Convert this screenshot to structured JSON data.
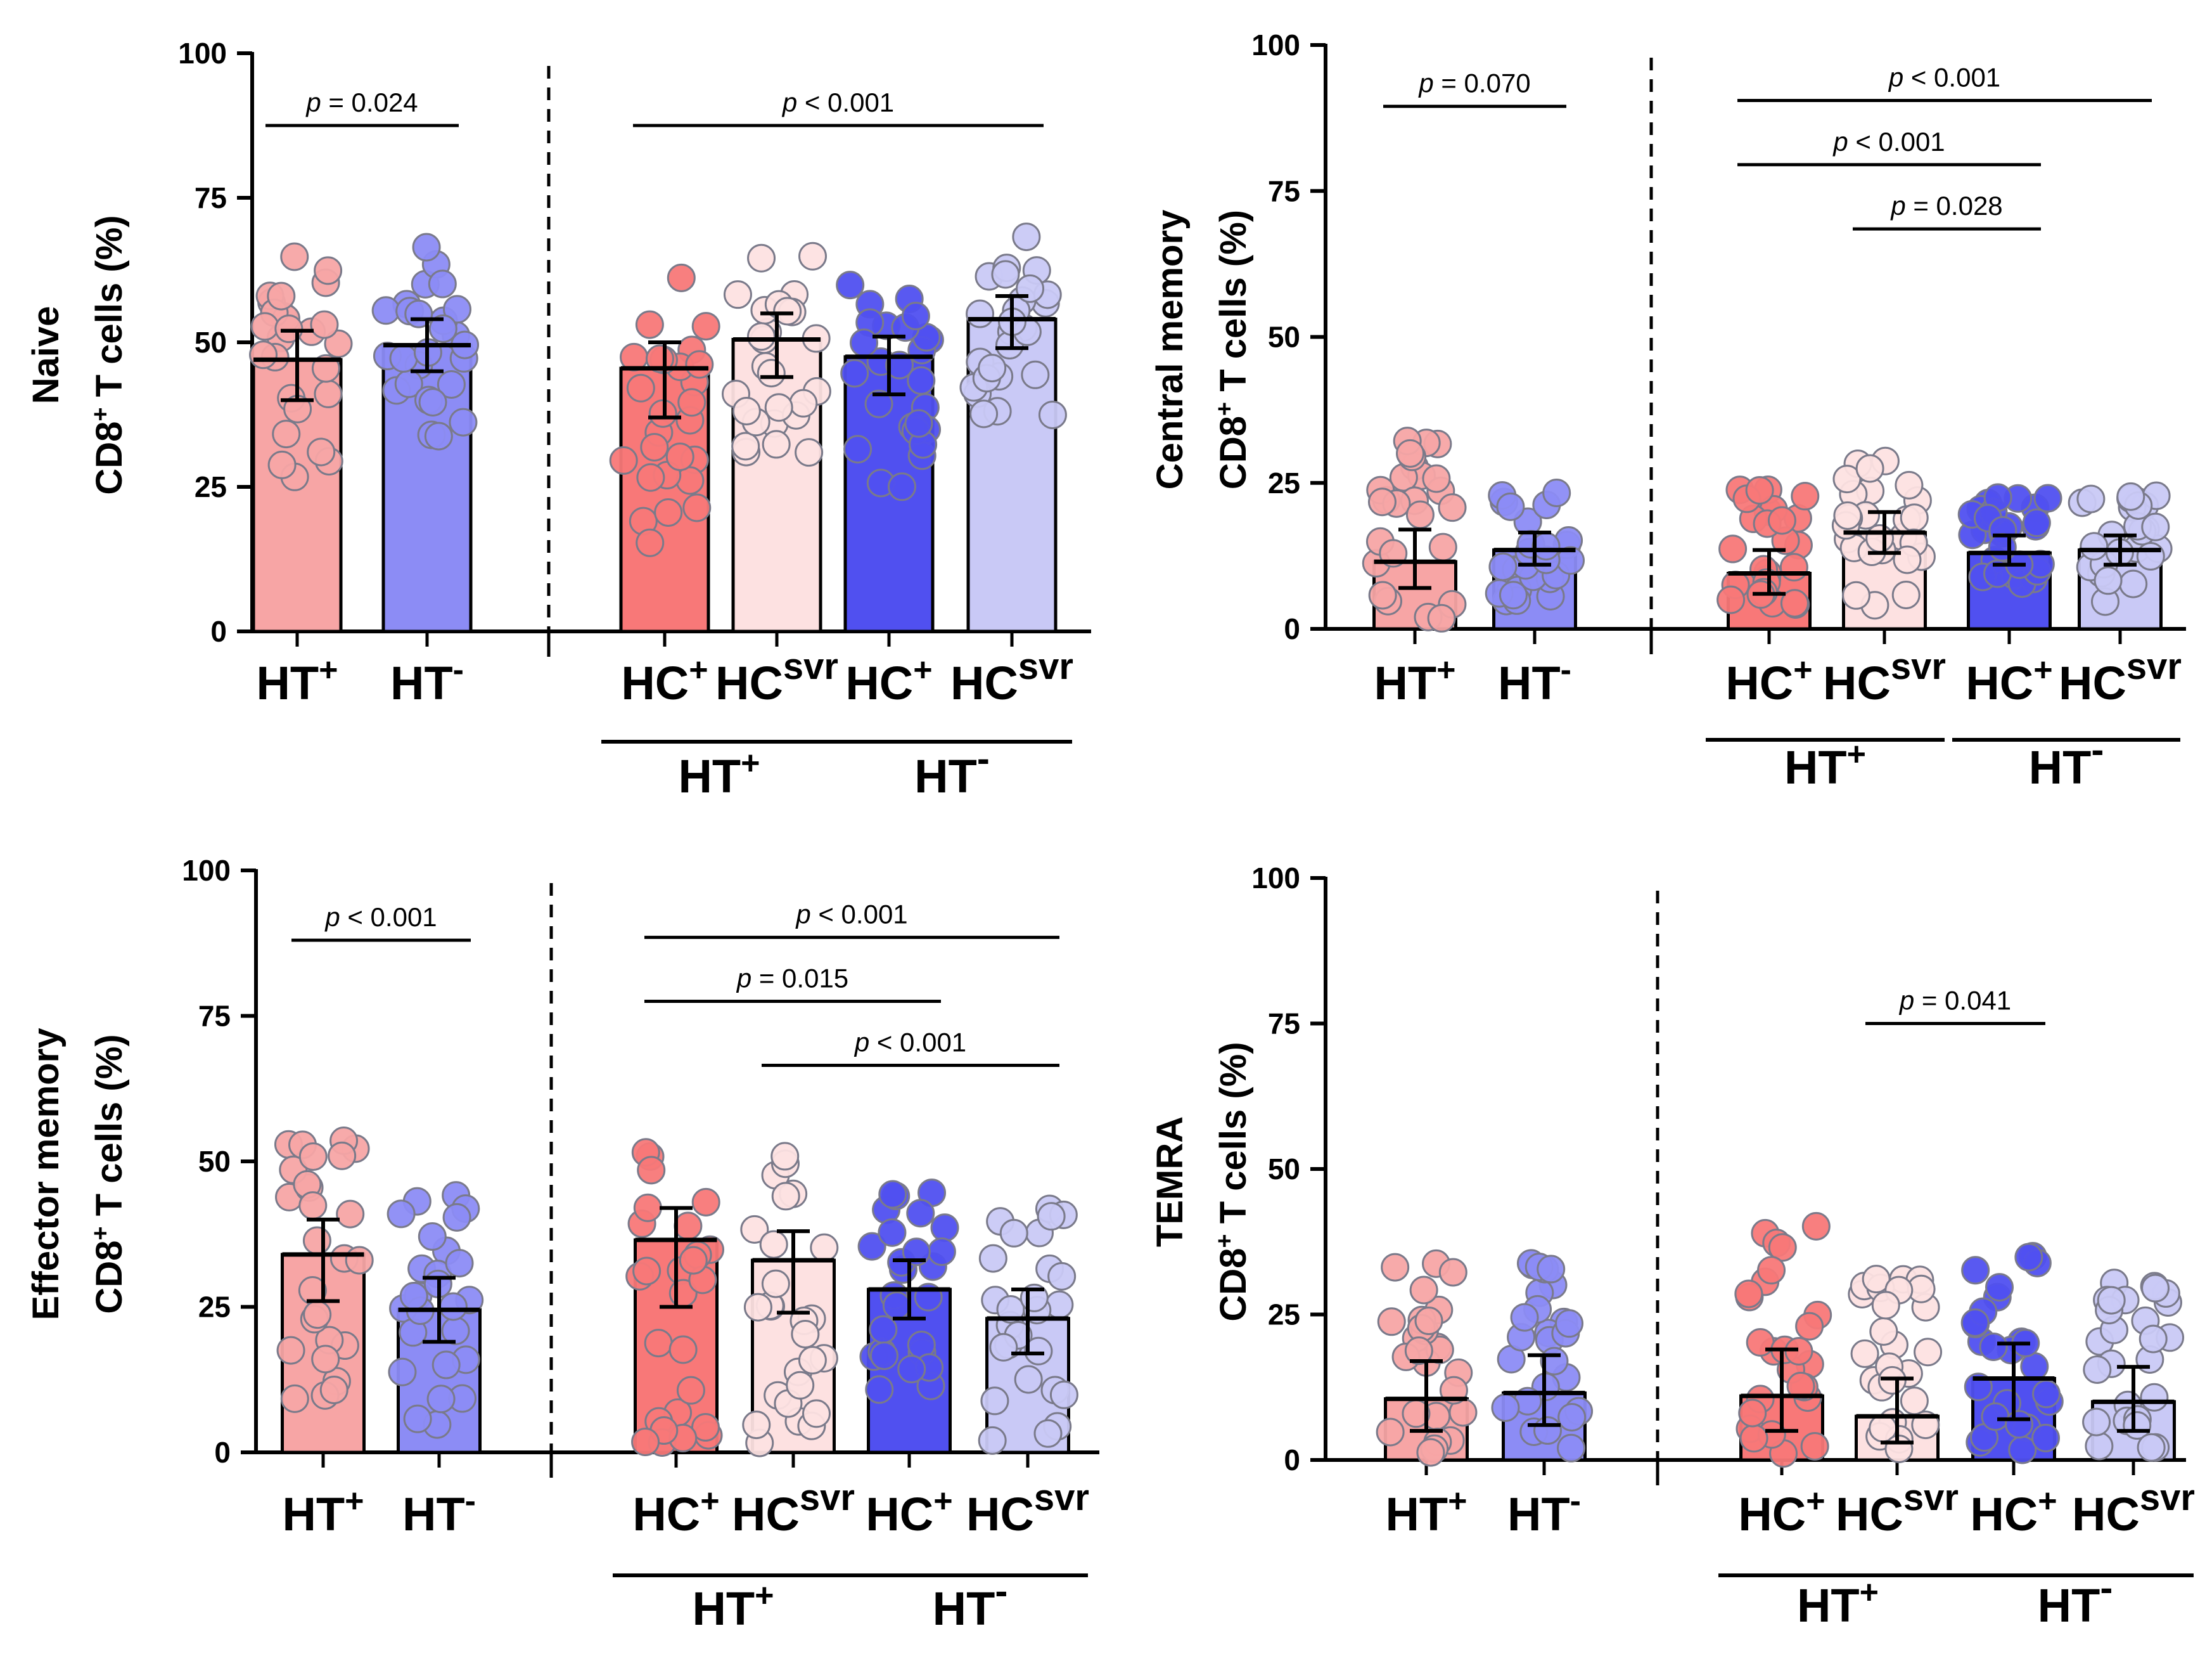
{
  "labels": {
    "ht_pos": "HT",
    "ht_neg": "HT",
    "hc_pos": "HC",
    "hc_svr": "HC",
    "plus": "+",
    "minus": "-",
    "svr": "svr",
    "p_letter": "p"
  },
  "colors": {
    "ht_pos": "#f7a5a5",
    "ht_neg": "#8c8cf5",
    "hc_pos_htpos": "#f87878",
    "hc_svr_htpos": "#fde1e1",
    "hc_pos_htneg": "#5050f0",
    "hc_svr_htneg": "#c9c9f6"
  },
  "chart_data": [
    {
      "type": "bar",
      "title_line1": "Naive",
      "ylabel_prefix": "CD8",
      "ylabel_suffix": " T cells (%)",
      "ylim": [
        0,
        100
      ],
      "yticks": [
        "0",
        "25",
        "50",
        "75",
        "100"
      ],
      "series": [
        {
          "name": "HT+",
          "value": 47,
          "error": [
            40,
            52
          ]
        },
        {
          "name": "HT-",
          "value": 49.5,
          "error": [
            45,
            54
          ]
        },
        {
          "name": "HC+ (HT+)",
          "value": 45.5,
          "error": [
            37,
            50
          ]
        },
        {
          "name": "HCsvr (HT+)",
          "value": 50.5,
          "error": [
            44,
            55
          ]
        },
        {
          "name": "HC+ (HT-)",
          "value": 47.5,
          "error": [
            41,
            51
          ]
        },
        {
          "name": "HCsvr (HT-)",
          "value": 54,
          "error": [
            49,
            58
          ]
        }
      ],
      "annotations": [
        {
          "text": " = 0.024",
          "from": "HT+",
          "to": "HT-",
          "y": 87.5
        },
        {
          "text": " < 0.001",
          "from": "HC+ (HT+)",
          "to": "HCsvr (HT-)",
          "y": 87.5
        }
      ]
    },
    {
      "type": "bar",
      "title_line1": "Central memory",
      "ylabel_prefix": "CD8",
      "ylabel_suffix": " T cells (%)",
      "ylim": [
        0,
        100
      ],
      "yticks": [
        "0",
        "25",
        "50",
        "75",
        "100"
      ],
      "series": [
        {
          "name": "HT+",
          "value": 11.5,
          "error": [
            7,
            17
          ]
        },
        {
          "name": "HT-",
          "value": 13.5,
          "error": [
            11,
            16.5
          ]
        },
        {
          "name": "HC+ (HT+)",
          "value": 9.5,
          "error": [
            6,
            13.5
          ]
        },
        {
          "name": "HCsvr (HT+)",
          "value": 16.5,
          "error": [
            13,
            20
          ]
        },
        {
          "name": "HC+ (HT-)",
          "value": 13,
          "error": [
            11,
            16
          ]
        },
        {
          "name": "HCsvr (HT-)",
          "value": 13.5,
          "error": [
            11,
            16
          ]
        }
      ],
      "annotations": [
        {
          "text": " = 0.070",
          "from": "HT+",
          "to": "HT-",
          "y": 89.5
        },
        {
          "text": " < 0.001",
          "from": "HC+ (HT+)",
          "to": "HCsvr (HT-)",
          "y": 90.5
        },
        {
          "text": " < 0.001",
          "from": "HC+ (HT+)",
          "to": "HC+ (HT-)",
          "y": 79.5
        },
        {
          "text": " = 0.028",
          "from": "HCsvr (HT+)",
          "to": "HC+ (HT-)",
          "y": 68.5
        }
      ]
    },
    {
      "type": "bar",
      "title_line1": "Effector memory",
      "ylabel_prefix": "CD8",
      "ylabel_suffix": " T cells (%)",
      "ylim": [
        0,
        100
      ],
      "yticks": [
        "0",
        "25",
        "50",
        "75",
        "100"
      ],
      "series": [
        {
          "name": "HT+",
          "value": 34,
          "error": [
            26,
            40
          ]
        },
        {
          "name": "HT-",
          "value": 24.5,
          "error": [
            19,
            30
          ]
        },
        {
          "name": "HC+ (HT+)",
          "value": 36.5,
          "error": [
            25,
            42
          ]
        },
        {
          "name": "HCsvr (HT+)",
          "value": 33,
          "error": [
            24,
            38
          ]
        },
        {
          "name": "HC+ (HT-)",
          "value": 28,
          "error": [
            23,
            33
          ]
        },
        {
          "name": "HCsvr (HT-)",
          "value": 23,
          "error": [
            17,
            28
          ]
        }
      ],
      "annotations": [
        {
          "text": " < 0.001",
          "from": "HT+",
          "to": "HT-",
          "y": 88
        },
        {
          "text": " < 0.001",
          "from": "HC+ (HT+)",
          "to": "HCsvr (HT-)",
          "y": 88.5
        },
        {
          "text": " = 0.015",
          "from": "HC+ (HT+)",
          "to": "HC+ (HT-)",
          "y": 77.5
        },
        {
          "text": " < 0.001",
          "from": "HCsvr (HT+)",
          "to": "HCsvr (HT-)",
          "y": 66.5
        }
      ]
    },
    {
      "type": "bar",
      "title_line1": "TEMRA",
      "ylabel_prefix": "CD8",
      "ylabel_suffix": " T cells (%)",
      "ylim": [
        0,
        100
      ],
      "yticks": [
        "0",
        "25",
        "50",
        "75",
        "100"
      ],
      "series": [
        {
          "name": "HT+",
          "value": 10.5,
          "error": [
            5,
            17
          ]
        },
        {
          "name": "HT-",
          "value": 11.5,
          "error": [
            6,
            18
          ]
        },
        {
          "name": "HC+ (HT+)",
          "value": 11,
          "error": [
            5,
            19
          ]
        },
        {
          "name": "HCsvr (HT+)",
          "value": 7.5,
          "error": [
            3,
            14
          ]
        },
        {
          "name": "HC+ (HT-)",
          "value": 14,
          "error": [
            7,
            20
          ]
        },
        {
          "name": "HCsvr (HT-)",
          "value": 10,
          "error": [
            5,
            16
          ]
        }
      ],
      "annotations": [
        {
          "text": " = 0.041",
          "from": "HCsvr (HT+)",
          "to": "HC+ (HT-)",
          "y": 75
        }
      ]
    }
  ]
}
